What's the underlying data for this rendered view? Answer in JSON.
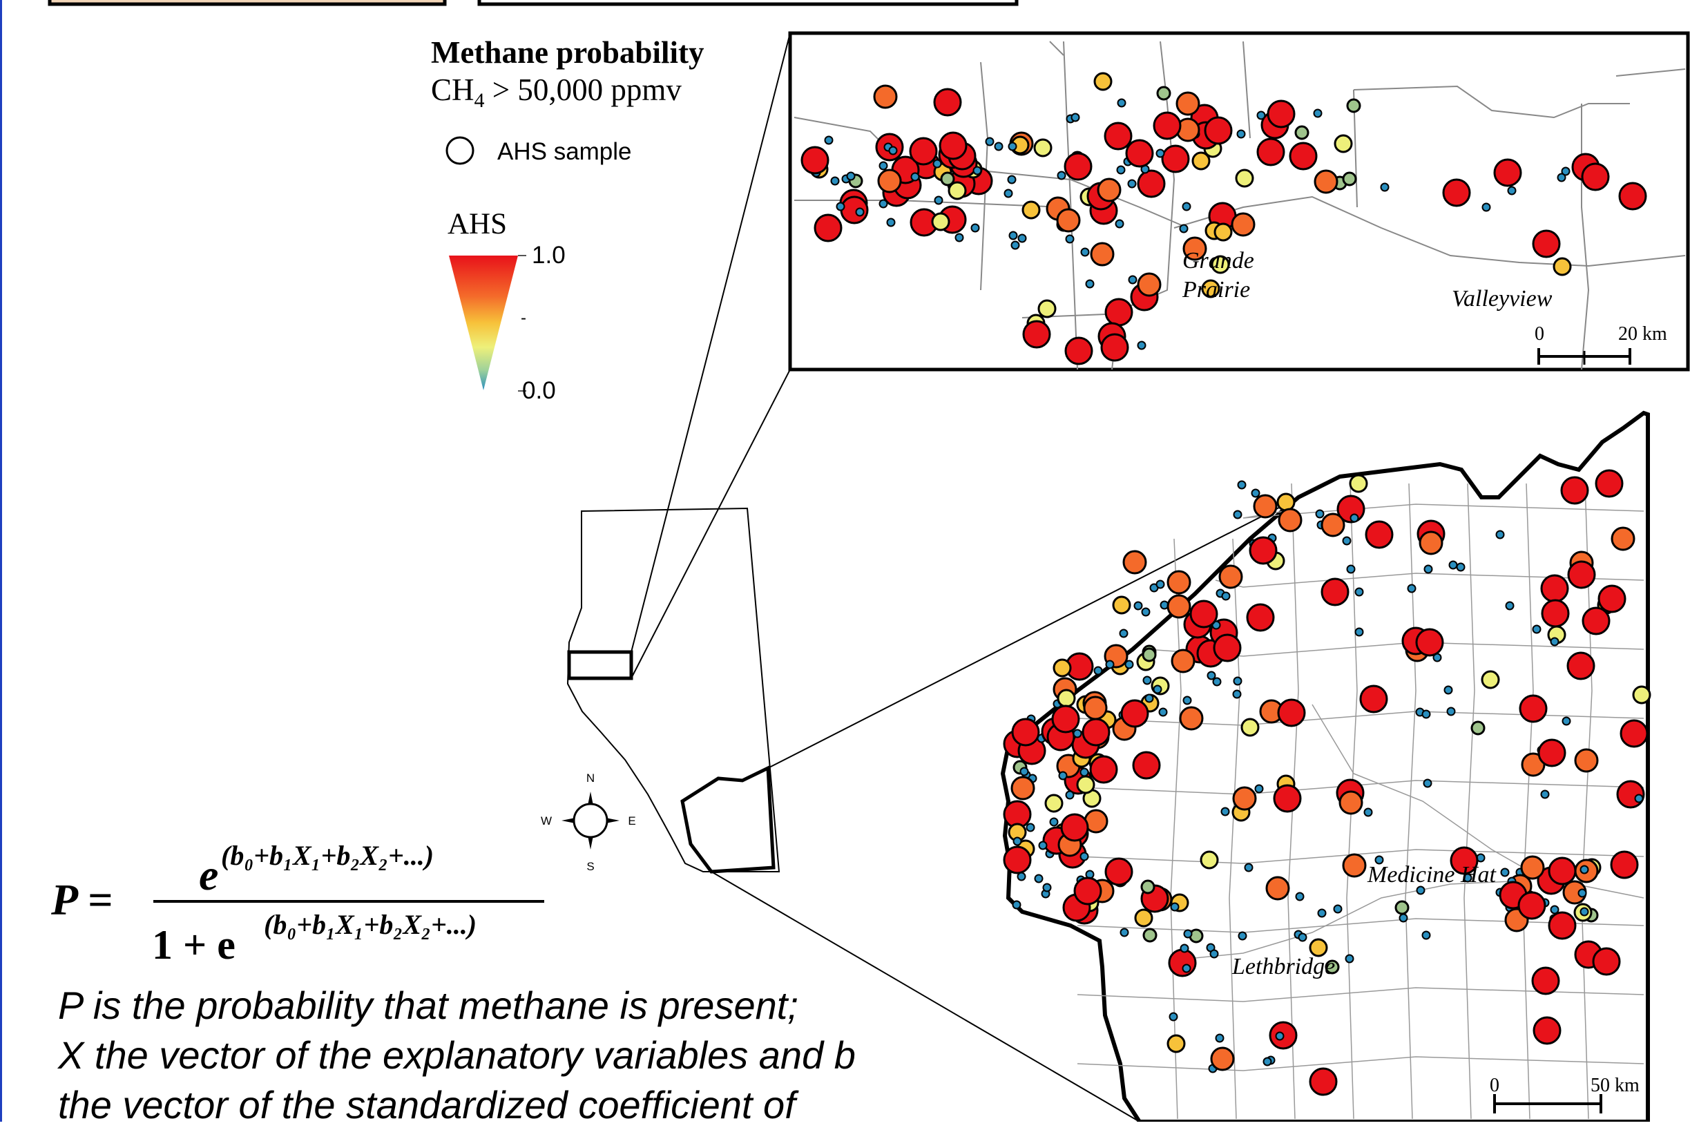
{
  "legend": {
    "title": "Methane probability",
    "subtitle_prefix": "CH",
    "subtitle_subscript": "4",
    "subtitle_suffix": " > 50,000 ppmv",
    "sample_label": "AHS sample",
    "ramp_title": "AHS",
    "ramp_max": "1.0",
    "ramp_mid": "-",
    "ramp_min": "0.0",
    "ramp_colors": [
      "#e8121a",
      "#f46a2a",
      "#f7c23a",
      "#eef07a",
      "#9fd29a",
      "#2a8fbf"
    ]
  },
  "inset_north": {
    "city_1_line_1": "Grande",
    "city_1_line_2": "Prairie",
    "city_2": "Valleyview",
    "scale_zero": "0",
    "scale_end": "20 km"
  },
  "inset_south": {
    "city_1": "Medicine Hat",
    "city_2": "Lethbridge",
    "scale_zero": "0",
    "scale_end": "50 km"
  },
  "compass": {
    "north": "N",
    "south": "S",
    "east": "E",
    "west": "W"
  },
  "formula": {
    "lhs": "P =",
    "numerator": "e",
    "numerator_exponent": "(b₀+b₁X₁+b₂X₂+...)",
    "denominator_lead": "1 + e",
    "denominator_exponent": "(b₀+b₁X₁+b₂X₂+...)"
  },
  "note": {
    "line_1": "P is the probability that methane is present;",
    "line_2": "X the vector of the explanatory variables and b",
    "line_3": "the vector of the standardized coefficient of"
  },
  "colors": {
    "high": "#e8121a",
    "upper": "#f46a2a",
    "middle": "#f7c23a",
    "lower": "#eef07a",
    "low_green": "#9fc48c",
    "none": "#2a8fbf",
    "border": "#1f3fbf"
  }
}
